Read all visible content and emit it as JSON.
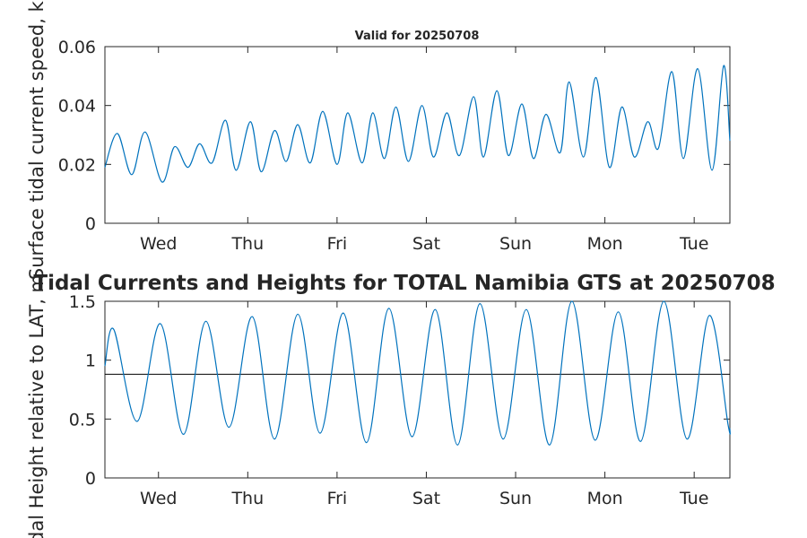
{
  "chart_data": [
    {
      "type": "line",
      "title": "Valid for 20250708",
      "ylabel": "Surface tidal current speed, kn",
      "xlim": [
        0,
        7
      ],
      "ylim": [
        0,
        0.06
      ],
      "xticks": [
        0.6,
        1.6,
        2.6,
        3.6,
        4.6,
        5.6,
        6.6
      ],
      "xtick_labels": [
        "Wed",
        "Thu",
        "Fri",
        "Sat",
        "Sun",
        "Mon",
        "Tue"
      ],
      "yticks": [
        0,
        0.02,
        0.04,
        0.06
      ],
      "ytick_labels": [
        "0",
        "0.02",
        "0.04",
        "0.06"
      ],
      "grid": false,
      "color": "#0072BD",
      "series": [
        {
          "x": [
            0.0,
            0.14,
            0.3,
            0.45,
            0.64,
            0.78,
            0.93,
            1.06,
            1.2,
            1.35,
            1.47,
            1.63,
            1.75,
            1.9,
            2.03,
            2.16,
            2.3,
            2.44,
            2.6,
            2.72,
            2.88,
            3.0,
            3.13,
            3.26,
            3.4,
            3.55,
            3.68,
            3.83,
            3.97,
            4.13,
            4.24,
            4.39,
            4.52,
            4.67,
            4.8,
            4.94,
            5.1,
            5.2,
            5.36,
            5.5,
            5.65,
            5.79,
            5.93,
            6.08,
            6.2,
            6.35,
            6.48,
            6.64,
            6.8,
            6.93,
            7.0
          ],
          "y": [
            0.019,
            0.0305,
            0.0165,
            0.031,
            0.014,
            0.026,
            0.019,
            0.027,
            0.0205,
            0.035,
            0.018,
            0.0345,
            0.0175,
            0.0315,
            0.021,
            0.0335,
            0.0205,
            0.038,
            0.02,
            0.0375,
            0.0205,
            0.0375,
            0.022,
            0.0395,
            0.021,
            0.04,
            0.0225,
            0.0375,
            0.023,
            0.043,
            0.0225,
            0.045,
            0.023,
            0.0405,
            0.022,
            0.037,
            0.024,
            0.048,
            0.0225,
            0.0495,
            0.019,
            0.0395,
            0.0225,
            0.0345,
            0.0255,
            0.0515,
            0.022,
            0.0525,
            0.018,
            0.0535,
            0.028
          ]
        }
      ]
    },
    {
      "type": "line",
      "title": "Tidal Currents and Heights for TOTAL Namibia GTS at 20250708",
      "ylabel": "Tidal Height relative to LAT, m",
      "xlim": [
        0,
        7
      ],
      "ylim": [
        0,
        1.5
      ],
      "xticks": [
        0.6,
        1.6,
        2.6,
        3.6,
        4.6,
        5.6,
        6.6
      ],
      "xtick_labels": [
        "Wed",
        "Thu",
        "Fri",
        "Sat",
        "Sun",
        "Mon",
        "Tue"
      ],
      "yticks": [
        0,
        0.5,
        1,
        1.5
      ],
      "ytick_labels": [
        "0",
        "0.5",
        "1",
        "1.5"
      ],
      "grid": false,
      "color": "#0072BD",
      "reference_line": 0.88,
      "series": [
        {
          "x": [
            0.0,
            0.1,
            0.36,
            0.62,
            0.88,
            1.13,
            1.39,
            1.65,
            1.9,
            2.16,
            2.41,
            2.67,
            2.93,
            3.18,
            3.44,
            3.7,
            3.95,
            4.2,
            4.46,
            4.72,
            4.98,
            5.23,
            5.49,
            5.75,
            6.0,
            6.26,
            6.52,
            6.77,
            6.98,
            7.0
          ],
          "y": [
            0.95,
            1.26,
            0.48,
            1.31,
            0.37,
            1.33,
            0.43,
            1.37,
            0.33,
            1.39,
            0.38,
            1.4,
            0.3,
            1.44,
            0.35,
            1.43,
            0.28,
            1.48,
            0.33,
            1.43,
            0.28,
            1.5,
            0.32,
            1.41,
            0.31,
            1.5,
            0.33,
            1.38,
            0.45,
            0.42
          ]
        }
      ]
    }
  ]
}
